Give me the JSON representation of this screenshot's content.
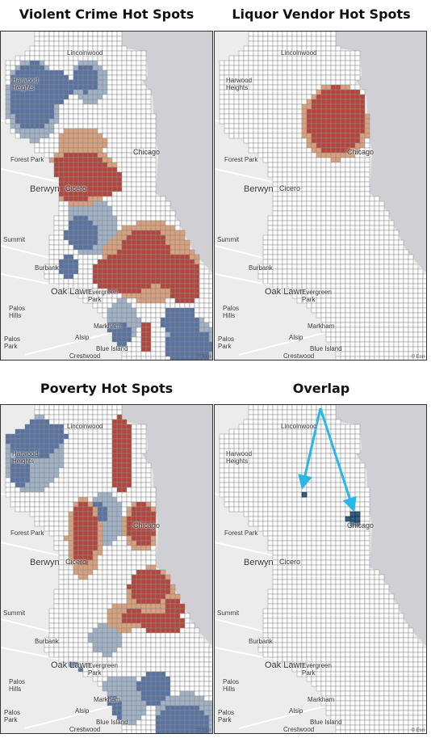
{
  "panels": [
    {
      "id": "violent",
      "title": "Violent Crime Hot Spots"
    },
    {
      "id": "liquor",
      "title": "Liquor Vendor Hot Spots"
    },
    {
      "id": "poverty",
      "title": "Poverty Hot Spots"
    },
    {
      "id": "overlap",
      "title": "Overlap"
    }
  ],
  "place_labels": {
    "lincolnwood": "Lincolnwood",
    "harwood_heights": "Harwood\nHeights",
    "chicago": "Chicago",
    "forest_park": "Forest Park",
    "berwyn": "Berwyn",
    "cicero": "Cicero",
    "summit": "Summit",
    "burbank": "Burbank",
    "oak_lawn": "Oak Lawn",
    "evergreen_park": "Evergreen\nPark",
    "palos_hills": "Palos\nHills",
    "palos_park": "Palos\nPark",
    "markham": "Markham",
    "alsip": "Alsip",
    "blue_island": "Blue Island",
    "crestwood": "Crestwood",
    "attribution": "© Esri"
  },
  "colors": {
    "hot": "#b5453a",
    "warm": "#d9a07a",
    "neutral_cell": "#ffffff",
    "grid_line": "#8a8a8a",
    "cold": "#5873a3",
    "cool": "#9fb2c8",
    "lake": "#cfcfd4",
    "basemap": "#ececec",
    "arrow": "#29b6e8",
    "overlap_cell": "#2f5f8a"
  }
}
